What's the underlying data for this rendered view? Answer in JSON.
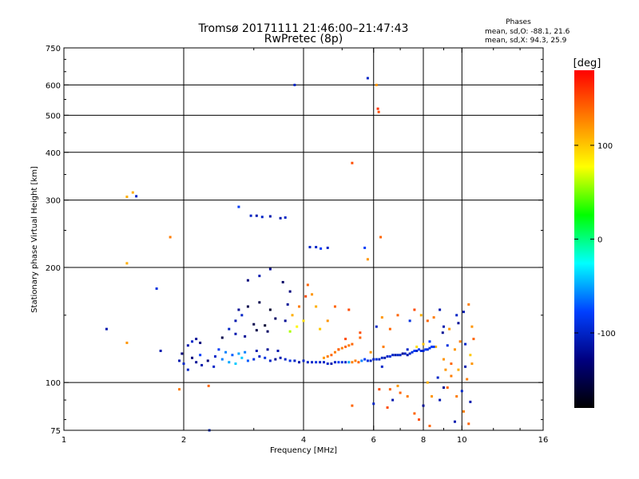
{
  "chart_data": {
    "type": "scatter",
    "title": "Tromsø 20171111 21:46:00–21:47:43",
    "subtitle": "RwPretec (8p)",
    "xlabel": "Frequency [MHz]",
    "ylabel": "Stationary phase Virtual Height [km]",
    "x_scale": "log",
    "y_scale": "log",
    "xlim": [
      1,
      16
    ],
    "ylim": [
      75,
      750
    ],
    "x_ticks": [
      1,
      2,
      4,
      6,
      8,
      10,
      16
    ],
    "x_tick_labels": [
      "1",
      "2",
      "4",
      "6",
      "8",
      "10",
      "16"
    ],
    "y_ticks": [
      75,
      100,
      200,
      300,
      400,
      500,
      600,
      750
    ],
    "y_tick_labels": [
      "75",
      "100",
      "200",
      "300",
      "400",
      "500",
      "600",
      "750"
    ],
    "x_grid": [
      2,
      4,
      6,
      8,
      10
    ],
    "y_grid": [
      100,
      200,
      300,
      400,
      500,
      600
    ],
    "grid": true,
    "info": {
      "heading": "Phases",
      "line_o": "mean, sd,O: -88.1, 21.6",
      "line_x": "mean, sd,X:  94.3, 25.9"
    },
    "colorbar": {
      "label": "[deg]",
      "range": [
        -180,
        180
      ],
      "ticks": [
        100,
        0,
        -100
      ],
      "tick_labels": [
        "100",
        "0",
        "-100"
      ],
      "colors": [
        "#ff0000",
        "#ff8000",
        "#ffff00",
        "#00ff00",
        "#00ffff",
        "#0040ff",
        "#000080",
        "#000000"
      ]
    },
    "series": [
      {
        "points": [
          [
            1.28,
            138,
            -110
          ],
          [
            1.44,
            127,
            120
          ],
          [
            1.44,
            306,
            110
          ],
          [
            1.49,
            314,
            110
          ],
          [
            1.52,
            307,
            -100
          ],
          [
            1.44,
            205,
            110
          ],
          [
            1.71,
            176,
            -90
          ],
          [
            1.85,
            240,
            130
          ],
          [
            1.75,
            121,
            -110
          ],
          [
            1.95,
            96,
            130
          ],
          [
            2.2,
            118,
            -80
          ],
          [
            2.31,
            98,
            140
          ],
          [
            2.32,
            75,
            -100
          ],
          [
            2.38,
            110,
            -100
          ],
          [
            2.5,
            131,
            -150
          ],
          [
            2.75,
            288,
            -80
          ],
          [
            2.95,
            273,
            -100
          ],
          [
            3.05,
            273,
            -110
          ],
          [
            3.15,
            271,
            -100
          ],
          [
            3.3,
            272,
            -110
          ],
          [
            3.5,
            269,
            -110
          ],
          [
            3.6,
            270,
            -100
          ],
          [
            4.15,
            226,
            -100
          ],
          [
            4.3,
            226,
            -100
          ],
          [
            4.42,
            224,
            -80
          ],
          [
            4.6,
            225,
            -100
          ],
          [
            3.8,
            600,
            -100
          ],
          [
            5.8,
            625,
            -100
          ],
          [
            6.1,
            600,
            120
          ],
          [
            6.15,
            520,
            160
          ],
          [
            6.18,
            510,
            150
          ],
          [
            5.3,
            375,
            150
          ],
          [
            5.7,
            225,
            -80
          ],
          [
            5.8,
            210,
            120
          ],
          [
            6.25,
            240,
            140
          ],
          [
            3.3,
            198,
            -120
          ],
          [
            3.1,
            190,
            -110
          ],
          [
            2.9,
            185,
            -130
          ],
          [
            3.55,
            183,
            -140
          ],
          [
            3.7,
            173,
            -130
          ],
          [
            3.65,
            160,
            -120
          ],
          [
            3.3,
            155,
            -160
          ],
          [
            3.1,
            162,
            -150
          ],
          [
            2.9,
            158,
            -150
          ],
          [
            2.75,
            155,
            -120
          ],
          [
            2.7,
            145,
            -110
          ],
          [
            2.8,
            150,
            -100
          ],
          [
            3.0,
            142,
            -150
          ],
          [
            3.2,
            141,
            -160
          ],
          [
            3.4,
            147,
            -140
          ],
          [
            3.6,
            145,
            -120
          ],
          [
            3.75,
            150,
            110
          ],
          [
            3.9,
            158,
            130
          ],
          [
            4.05,
            168,
            150
          ],
          [
            4.1,
            180,
            140
          ],
          [
            4.2,
            170,
            120
          ],
          [
            4.3,
            158,
            110
          ],
          [
            4.0,
            145,
            90
          ],
          [
            3.85,
            140,
            80
          ],
          [
            3.7,
            136,
            60
          ],
          [
            2.7,
            134,
            -110
          ],
          [
            2.6,
            138,
            -100
          ],
          [
            2.85,
            132,
            -120
          ],
          [
            3.05,
            137,
            -150
          ],
          [
            3.25,
            136,
            -140
          ],
          [
            4.8,
            158,
            140
          ],
          [
            5.2,
            155,
            150
          ],
          [
            4.6,
            145,
            120
          ],
          [
            4.4,
            138,
            100
          ],
          [
            5.1,
            130,
            150
          ],
          [
            5.3,
            126,
            140
          ],
          [
            5.55,
            135,
            150
          ],
          [
            6.3,
            148,
            120
          ],
          [
            6.1,
            140,
            -100
          ],
          [
            6.6,
            138,
            140
          ],
          [
            6.9,
            150,
            140
          ],
          [
            7.4,
            145,
            -90
          ],
          [
            7.6,
            155,
            150
          ],
          [
            7.9,
            150,
            110
          ],
          [
            8.2,
            145,
            140
          ],
          [
            8.5,
            148,
            130
          ],
          [
            8.8,
            155,
            -110
          ],
          [
            8.95,
            135,
            -120
          ],
          [
            9.0,
            140,
            -110
          ],
          [
            9.3,
            138,
            120
          ],
          [
            9.7,
            150,
            -100
          ],
          [
            9.8,
            143,
            -120
          ],
          [
            10.1,
            153,
            -110
          ],
          [
            10.4,
            160,
            130
          ],
          [
            10.6,
            140,
            120
          ],
          [
            10.7,
            130,
            140
          ],
          [
            10.2,
            126,
            -100
          ],
          [
            9.9,
            128,
            130
          ],
          [
            9.6,
            122,
            120
          ],
          [
            9.2,
            125,
            -90
          ],
          [
            8.6,
            124,
            110
          ],
          [
            8.3,
            128,
            -80
          ],
          [
            8.0,
            126,
            100
          ],
          [
            7.7,
            124,
            90
          ],
          [
            7.3,
            122,
            -100
          ],
          [
            9.0,
            115,
            120
          ],
          [
            9.4,
            112,
            140
          ],
          [
            9.8,
            108,
            110
          ],
          [
            10.2,
            110,
            -110
          ],
          [
            10.5,
            118,
            100
          ],
          [
            10.6,
            112,
            120
          ],
          [
            10.3,
            102,
            130
          ],
          [
            10.0,
            95,
            -100
          ],
          [
            9.7,
            92,
            130
          ],
          [
            9.2,
            97,
            140
          ],
          [
            8.8,
            90,
            -110
          ],
          [
            8.4,
            92,
            120
          ],
          [
            8.0,
            87,
            -120
          ],
          [
            7.6,
            83,
            140
          ],
          [
            7.3,
            92,
            130
          ],
          [
            7.0,
            94,
            140
          ],
          [
            6.7,
            90,
            -110
          ],
          [
            6.5,
            86,
            150
          ],
          [
            6.6,
            96,
            140
          ],
          [
            6.9,
            98,
            120
          ],
          [
            7.8,
            80,
            150
          ],
          [
            8.3,
            77,
            140
          ],
          [
            9.6,
            79,
            -110
          ],
          [
            10.1,
            84,
            130
          ],
          [
            10.4,
            78,
            140
          ],
          [
            10.5,
            89,
            -110
          ],
          [
            5.3,
            87,
            140
          ],
          [
            6.0,
            88,
            -100
          ],
          [
            6.2,
            96,
            150
          ],
          [
            6.3,
            110,
            -100
          ],
          [
            9.0,
            97,
            -120
          ],
          [
            9.4,
            104,
            130
          ],
          [
            9.1,
            108,
            120
          ],
          [
            8.7,
            103,
            -100
          ],
          [
            8.2,
            100,
            110
          ],
          [
            5.9,
            120,
            120
          ],
          [
            6.35,
            124,
            130
          ],
          [
            5.55,
            131,
            140
          ],
          [
            4.9,
            122,
            150
          ]
        ],
        "o_trace": [
          [
            1.95,
            114,
            -110
          ],
          [
            1.98,
            119,
            -130
          ],
          [
            2.0,
            112,
            -100
          ],
          [
            2.05,
            108,
            -100
          ],
          [
            2.1,
            116,
            -130
          ],
          [
            2.15,
            113,
            -120
          ],
          [
            2.22,
            111,
            -110
          ],
          [
            2.3,
            114,
            -130
          ],
          [
            2.4,
            117,
            -100
          ],
          [
            2.5,
            115,
            -60
          ],
          [
            2.6,
            113,
            -50
          ],
          [
            2.7,
            112,
            -40
          ],
          [
            2.8,
            116,
            -40
          ],
          [
            2.9,
            114,
            -70
          ],
          [
            3.0,
            115,
            -90
          ],
          [
            3.1,
            117,
            -100
          ],
          [
            3.2,
            116,
            -90
          ],
          [
            3.3,
            114,
            -100
          ],
          [
            3.4,
            115,
            -120
          ],
          [
            3.5,
            116,
            -110
          ],
          [
            3.6,
            115,
            -100
          ],
          [
            3.7,
            114,
            -90
          ],
          [
            3.8,
            114,
            -100
          ],
          [
            3.9,
            113,
            -110
          ],
          [
            4.0,
            114,
            -100
          ],
          [
            4.1,
            113,
            -100
          ],
          [
            4.2,
            113,
            -100
          ],
          [
            4.3,
            113,
            -90
          ],
          [
            4.4,
            113,
            -100
          ],
          [
            4.5,
            113,
            -100
          ],
          [
            4.6,
            112,
            -100
          ],
          [
            4.7,
            112,
            -110
          ],
          [
            4.8,
            113,
            -100
          ],
          [
            4.9,
            113,
            -80
          ],
          [
            5.0,
            113,
            -90
          ],
          [
            5.1,
            113,
            -100
          ],
          [
            5.2,
            113,
            -50
          ],
          [
            5.3,
            113,
            130
          ],
          [
            5.4,
            114,
            130
          ],
          [
            5.5,
            113,
            140
          ],
          [
            5.6,
            114,
            -60
          ],
          [
            5.7,
            115,
            -80
          ],
          [
            5.8,
            114,
            -90
          ],
          [
            5.9,
            114,
            -100
          ],
          [
            6.0,
            115,
            -100
          ],
          [
            6.1,
            115,
            -90
          ],
          [
            6.2,
            115,
            -100
          ],
          [
            6.3,
            116,
            -100
          ],
          [
            6.4,
            116,
            -110
          ],
          [
            6.5,
            117,
            -100
          ],
          [
            6.6,
            117,
            -90
          ],
          [
            6.7,
            118,
            -100
          ],
          [
            6.8,
            118,
            -110
          ],
          [
            6.9,
            118,
            -100
          ],
          [
            7.0,
            118,
            -100
          ],
          [
            7.1,
            119,
            -120
          ],
          [
            7.2,
            119,
            -100
          ],
          [
            7.3,
            118,
            -110
          ],
          [
            7.4,
            119,
            -100
          ],
          [
            7.5,
            120,
            -90
          ],
          [
            7.6,
            121,
            -80
          ],
          [
            7.7,
            121,
            -100
          ],
          [
            7.8,
            122,
            -80
          ],
          [
            7.9,
            121,
            -90
          ],
          [
            8.0,
            121,
            -100
          ],
          [
            8.1,
            122,
            -80
          ],
          [
            8.2,
            122,
            -90
          ],
          [
            8.3,
            123,
            -90
          ],
          [
            8.4,
            124,
            -80
          ],
          [
            8.5,
            124,
            -80
          ],
          [
            4.7,
            118,
            140
          ],
          [
            4.8,
            120,
            130
          ],
          [
            4.9,
            122,
            140
          ],
          [
            5.0,
            123,
            130
          ],
          [
            5.1,
            124,
            140
          ],
          [
            5.2,
            125,
            130
          ],
          [
            4.6,
            117,
            130
          ],
          [
            4.5,
            116,
            120
          ],
          [
            2.45,
            122,
            -80
          ],
          [
            2.55,
            120,
            -60
          ],
          [
            2.65,
            118,
            -70
          ],
          [
            2.75,
            119,
            -50
          ],
          [
            2.85,
            120,
            -60
          ],
          [
            3.05,
            121,
            -110
          ],
          [
            3.25,
            122,
            -120
          ],
          [
            3.45,
            121,
            -110
          ],
          [
            2.05,
            125,
            -110
          ],
          [
            2.1,
            128,
            -100
          ],
          [
            2.15,
            130,
            -120
          ],
          [
            2.2,
            127,
            -130
          ]
        ]
      }
    ]
  }
}
